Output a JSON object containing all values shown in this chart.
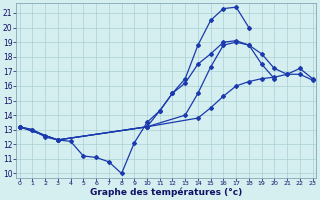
{
  "xlabel": "Graphe des températures (°c)",
  "bg_color": "#d5eef0",
  "grid_color": "#aad0d4",
  "line_color": "#1a3aad",
  "xlim": [
    -0.3,
    23.3
  ],
  "ylim": [
    9.7,
    21.7
  ],
  "yticks": [
    10,
    11,
    12,
    13,
    14,
    15,
    16,
    17,
    18,
    19,
    20,
    21
  ],
  "xticks": [
    0,
    1,
    2,
    3,
    4,
    5,
    6,
    7,
    8,
    9,
    10,
    11,
    12,
    13,
    14,
    15,
    16,
    17,
    18,
    19,
    20,
    21,
    22,
    23
  ],
  "curve1_x": [
    0,
    1,
    2,
    3,
    4,
    5,
    6,
    7,
    8,
    9,
    10,
    11,
    12,
    13,
    14,
    15,
    16,
    17,
    18,
    19,
    20
  ],
  "curve1_y": [
    13.2,
    13.0,
    12.6,
    12.3,
    12.2,
    11.2,
    11.1,
    10.8,
    10.0,
    12.1,
    13.5,
    14.3,
    15.5,
    16.2,
    17.5,
    18.2,
    19.0,
    19.1,
    18.8,
    17.5,
    16.5
  ],
  "curve2_x": [
    0,
    1,
    2,
    3,
    10,
    11,
    12,
    13,
    14,
    15,
    16,
    17,
    18
  ],
  "curve2_y": [
    13.2,
    13.0,
    12.5,
    12.3,
    13.2,
    14.3,
    15.5,
    16.5,
    18.8,
    20.5,
    21.3,
    21.4,
    20.0
  ],
  "curve3_x": [
    0,
    3,
    10,
    13,
    14,
    15,
    16,
    17,
    18,
    19,
    20,
    21,
    22,
    23
  ],
  "curve3_y": [
    13.2,
    12.3,
    13.2,
    14.0,
    15.5,
    17.3,
    18.8,
    19.0,
    18.8,
    18.2,
    17.2,
    16.8,
    17.2,
    16.5
  ],
  "curve4_x": [
    0,
    3,
    10,
    14,
    15,
    16,
    17,
    18,
    19,
    20,
    21,
    22,
    23
  ],
  "curve4_y": [
    13.2,
    12.3,
    13.2,
    13.8,
    14.5,
    15.3,
    16.0,
    16.3,
    16.5,
    16.6,
    16.8,
    16.8,
    16.4
  ]
}
